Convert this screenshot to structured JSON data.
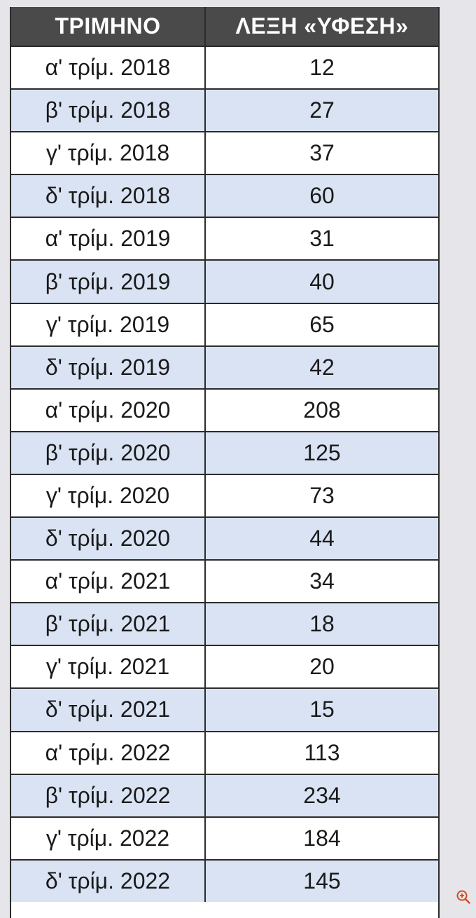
{
  "chart_data": {
    "type": "table",
    "columns": [
      "ΤΡΙΜΗΝΟ",
      "ΛΕΞΗ «ΥΦΕΣΗ»"
    ],
    "rows": [
      [
        "α' τρίμ. 2018",
        "12"
      ],
      [
        "β' τρίμ. 2018",
        "27"
      ],
      [
        "γ' τρίμ. 2018",
        "37"
      ],
      [
        "δ' τρίμ. 2018",
        "60"
      ],
      [
        "α' τρίμ. 2019",
        "31"
      ],
      [
        "β' τρίμ. 2019",
        "40"
      ],
      [
        "γ' τρίμ. 2019",
        "65"
      ],
      [
        "δ' τρίμ. 2019",
        "42"
      ],
      [
        "α' τρίμ. 2020",
        "208"
      ],
      [
        "β' τρίμ. 2020",
        "125"
      ],
      [
        "γ' τρίμ. 2020",
        "73"
      ],
      [
        "δ' τρίμ. 2020",
        "44"
      ],
      [
        "α' τρίμ. 2021",
        "34"
      ],
      [
        "β' τρίμ. 2021",
        "18"
      ],
      [
        "γ' τρίμ. 2021",
        "20"
      ],
      [
        "δ' τρίμ. 2021",
        "15"
      ],
      [
        "α' τρίμ. 2022",
        "113"
      ],
      [
        "β' τρίμ. 2022",
        "234"
      ],
      [
        "γ' τρίμ. 2022",
        "184"
      ],
      [
        "δ' τρίμ. 2022",
        "145"
      ]
    ]
  },
  "colors": {
    "header_bg": "#4a4a4a",
    "header_text": "#ffffff",
    "row_alt_bg": "#d9e3f3",
    "row_bg": "#ffffff",
    "border": "#2b2b2b",
    "page_bg": "#e6e6ea",
    "zoom_icon": "#d9471f"
  },
  "icons": {
    "zoom": "zoom-in-icon"
  }
}
